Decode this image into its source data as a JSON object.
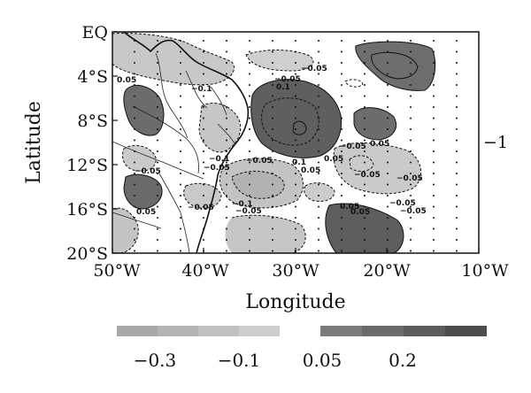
{
  "figure": {
    "xlabel": "Longitude",
    "ylabel": "Latitude",
    "x_ticks": [
      "50°W",
      "40°W",
      "30°W",
      "20°W",
      "10°W"
    ],
    "y_ticks": [
      "EQ",
      "4°S",
      "8°S",
      "12°S",
      "16°S",
      "20°S"
    ],
    "side_label": "−1",
    "contour_labels": [
      "0.05",
      "−0.05",
      "−0.1",
      "0.1",
      "−0.05",
      "−0.05",
      "0.05",
      "0.1",
      "0.05",
      "−0.05",
      "−0.1",
      "−0.05",
      "−0.05",
      "0.05",
      "−0.05",
      "−0.1",
      "−0.05",
      "0.05",
      "−0.05",
      "0.05",
      "−0.05",
      "−0.05",
      "0.05",
      "−0.05"
    ],
    "colorbar": {
      "labels": [
        "−0.3",
        "−0.1",
        "0.05",
        "0.2"
      ],
      "negative_colors": [
        "#a8a8a8",
        "#b4b4b4",
        "#c0c0c0",
        "#cdcdcd"
      ],
      "positive_colors": [
        "#7b7b7b",
        "#6b6b6b",
        "#5c5c5c",
        "#4d4d4d"
      ]
    }
  },
  "chart_data": {
    "type": "heatmap",
    "xlabel": "Longitude",
    "ylabel": "Latitude",
    "xlim": [
      -50,
      -10
    ],
    "ylim": [
      -20,
      0
    ],
    "x_ticks": [
      "50°W",
      "40°W",
      "30°W",
      "20°W",
      "10°W"
    ],
    "y_ticks": [
      "EQ",
      "4°S",
      "8°S",
      "12°S",
      "16°S",
      "20°S"
    ],
    "colorbar_ticks": [
      -0.3,
      -0.1,
      0.05,
      0.2
    ],
    "contour_levels": [
      -0.1,
      -0.05,
      0.05,
      0.1
    ]
  }
}
